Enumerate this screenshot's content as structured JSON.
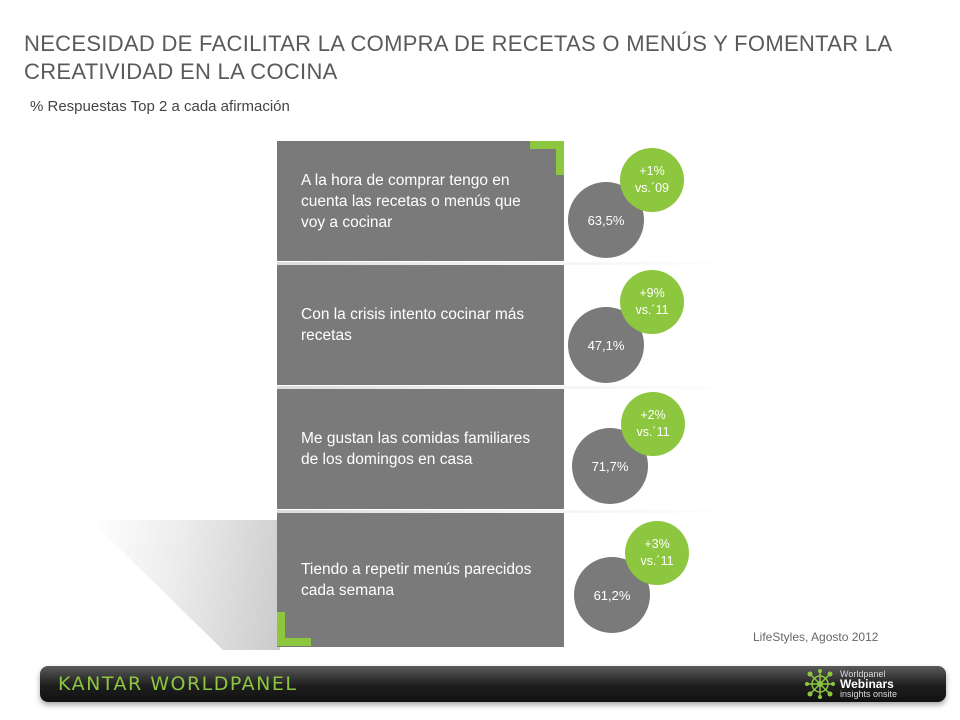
{
  "title": "NECESIDAD DE FACILITAR LA COMPRA DE RECETAS O MENÚS  Y FOMENTAR LA CREATIVIDAD EN LA COCINA",
  "subtitle": "% Respuestas Top 2 a cada afirmación",
  "items": [
    {
      "statement": "A la hora de comprar  tengo en cuenta las recetas o menús que voy a cocinar",
      "value": "63,5%",
      "delta": "+1%",
      "vs": "vs.´09"
    },
    {
      "statement": "Con la crisis intento cocinar más recetas",
      "value": "47,1%",
      "delta": "+9%",
      "vs": "vs.´11"
    },
    {
      "statement": "Me gustan las comidas familiares de los domingos en casa",
      "value": "71,7%",
      "delta": "+2%",
      "vs": "vs.´11"
    },
    {
      "statement": "Tiendo a repetir menús parecidos cada semana",
      "value": "61,2%",
      "delta": "+3%",
      "vs": "vs.´11"
    }
  ],
  "source": "LifeStyles, Agosto 2012",
  "footer": {
    "brand": "KANTAR WORLDPANEL",
    "webinar_line1": "Worldpanel",
    "webinar_line2": "Webinars",
    "webinar_line3": "insights onsite"
  },
  "colors": {
    "accent": "#8dc63f",
    "panel": "#7a7a7a",
    "title": "#5a5a5a"
  }
}
